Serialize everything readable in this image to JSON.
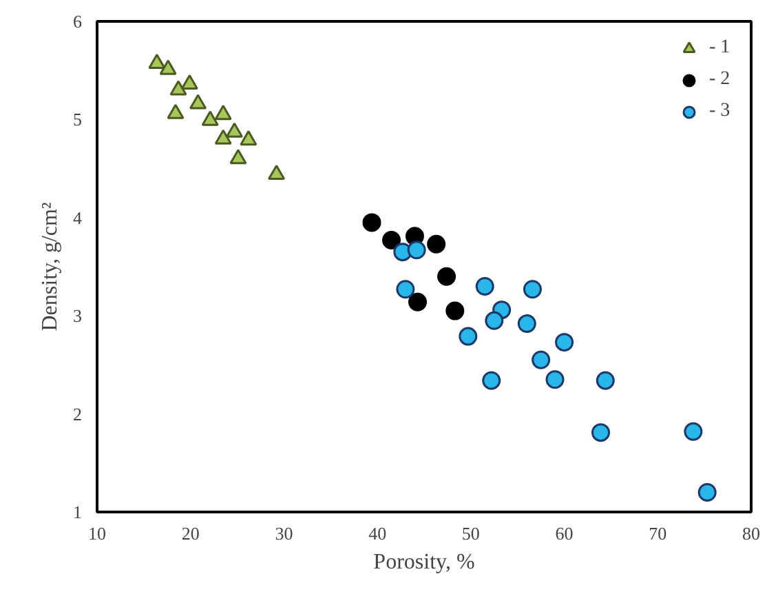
{
  "chart_data": {
    "type": "scatter",
    "xlabel": "Porosity, %",
    "ylabel": "Density, g/cm²",
    "xlim": [
      10,
      80
    ],
    "ylim": [
      1,
      6
    ],
    "xticks": [
      10,
      20,
      30,
      40,
      50,
      60,
      70,
      80
    ],
    "yticks": [
      1,
      2,
      3,
      4,
      5,
      6
    ],
    "grid": false,
    "legend": "top right",
    "series": [
      {
        "name": "- 1",
        "color": "#a6c85a",
        "marker": "triangle",
        "x": [
          16.4,
          17.6,
          18.7,
          19.9,
          20.8,
          18.4,
          22.1,
          23.5,
          23.5,
          24.7,
          26.2,
          25.1,
          29.2
        ],
        "values": [
          5.57,
          5.51,
          5.3,
          5.36,
          5.16,
          5.06,
          4.99,
          5.05,
          4.8,
          4.87,
          4.79,
          4.6,
          4.44
        ]
      },
      {
        "name": "- 2",
        "color": "#000000",
        "marker": "circle",
        "x": [
          39.4,
          41.5,
          44.0,
          46.3,
          47.4,
          44.3,
          48.3
        ],
        "values": [
          3.95,
          3.77,
          3.81,
          3.73,
          3.4,
          3.14,
          3.05
        ]
      },
      {
        "name": "- 3",
        "color": "#29b6e8",
        "marker": "circle",
        "x": [
          42.7,
          44.2,
          43.0,
          51.5,
          56.6,
          53.3,
          52.5,
          56.0,
          49.7,
          60.0,
          57.5,
          59.0,
          52.2,
          64.4,
          63.9,
          73.8,
          75.3
        ],
        "values": [
          3.65,
          3.67,
          3.27,
          3.3,
          3.27,
          3.06,
          2.95,
          2.92,
          2.79,
          2.73,
          2.55,
          2.35,
          2.34,
          2.34,
          1.81,
          1.82,
          1.2
        ]
      }
    ]
  }
}
